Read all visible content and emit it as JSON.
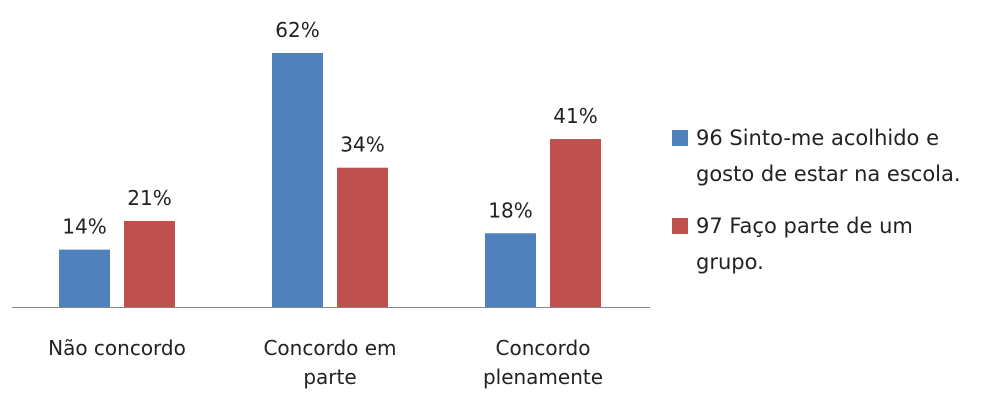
{
  "chart_data": {
    "type": "bar",
    "categories": [
      [
        "Não concordo"
      ],
      [
        "Concordo em",
        "parte"
      ],
      [
        "Concordo",
        "plenamente"
      ]
    ],
    "series": [
      {
        "name": "96 Sinto-me acolhido e gosto de estar na escola.",
        "legend_lines": [
          "96 Sinto-me acolhido e",
          "gosto de estar na escola."
        ],
        "color": "#4F81BD",
        "values": [
          14,
          62,
          18
        ],
        "labels": [
          "14%",
          "62%",
          "18%"
        ]
      },
      {
        "name": "97 Faço parte de um grupo.",
        "legend_lines": [
          "97 Faço parte de um",
          "grupo."
        ],
        "color": "#C0504D",
        "values": [
          21,
          34,
          41
        ],
        "labels": [
          "21%",
          "34%",
          "41%"
        ]
      }
    ],
    "ylim": [
      0,
      62
    ],
    "grid": false,
    "legend_position": "right",
    "axis_color": "#868686"
  }
}
